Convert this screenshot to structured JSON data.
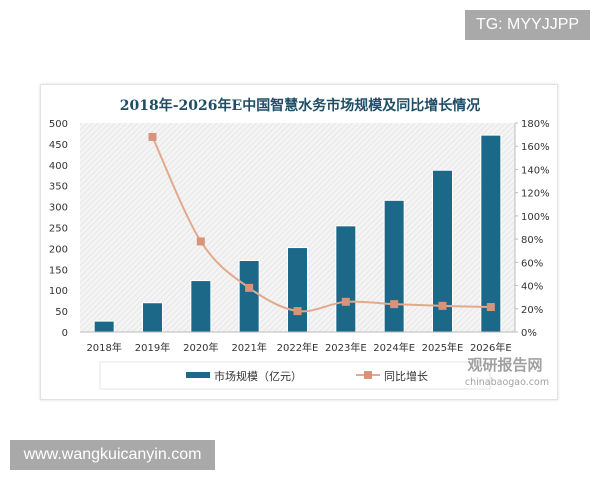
{
  "watermark_top": "TG: MYYJJPP",
  "watermark_bottom": "www.wangkuicanyin.com",
  "logo": {
    "name": "观研报告网",
    "url_text": "chinabaogao.com"
  },
  "colors": {
    "bar": "#1b6889",
    "line": "#e3a98c",
    "marker": "#d9937a",
    "title": "#1f4d66"
  },
  "chart_data": {
    "type": "bar+line",
    "title": "2018年-2026年E中国智慧水务市场规模及同比增长情况",
    "categories": [
      "2018年",
      "2019年",
      "2020年",
      "2021年",
      "2022年E",
      "2023年E",
      "2024年E",
      "2025年E",
      "2026年E"
    ],
    "series": [
      {
        "name": "市场规模（亿元）",
        "type": "bar",
        "axis": "left",
        "values": [
          26,
          70,
          123,
          171,
          202,
          254,
          315,
          387,
          471
        ]
      },
      {
        "name": "同比增长",
        "type": "line",
        "axis": "right",
        "values": [
          null,
          168,
          78,
          38,
          18,
          26,
          24,
          22.5,
          21.5
        ]
      }
    ],
    "y_left": {
      "range": [
        0,
        500
      ],
      "ticks": [
        "0",
        "50",
        "100",
        "150",
        "200",
        "250",
        "300",
        "350",
        "400",
        "450",
        "500"
      ]
    },
    "y_right": {
      "range": [
        0,
        180
      ],
      "ticks": [
        "0%",
        "20%",
        "40%",
        "60%",
        "80%",
        "100%",
        "120%",
        "140%",
        "160%",
        "180%"
      ]
    },
    "grid": false,
    "legend_position": "bottom"
  }
}
